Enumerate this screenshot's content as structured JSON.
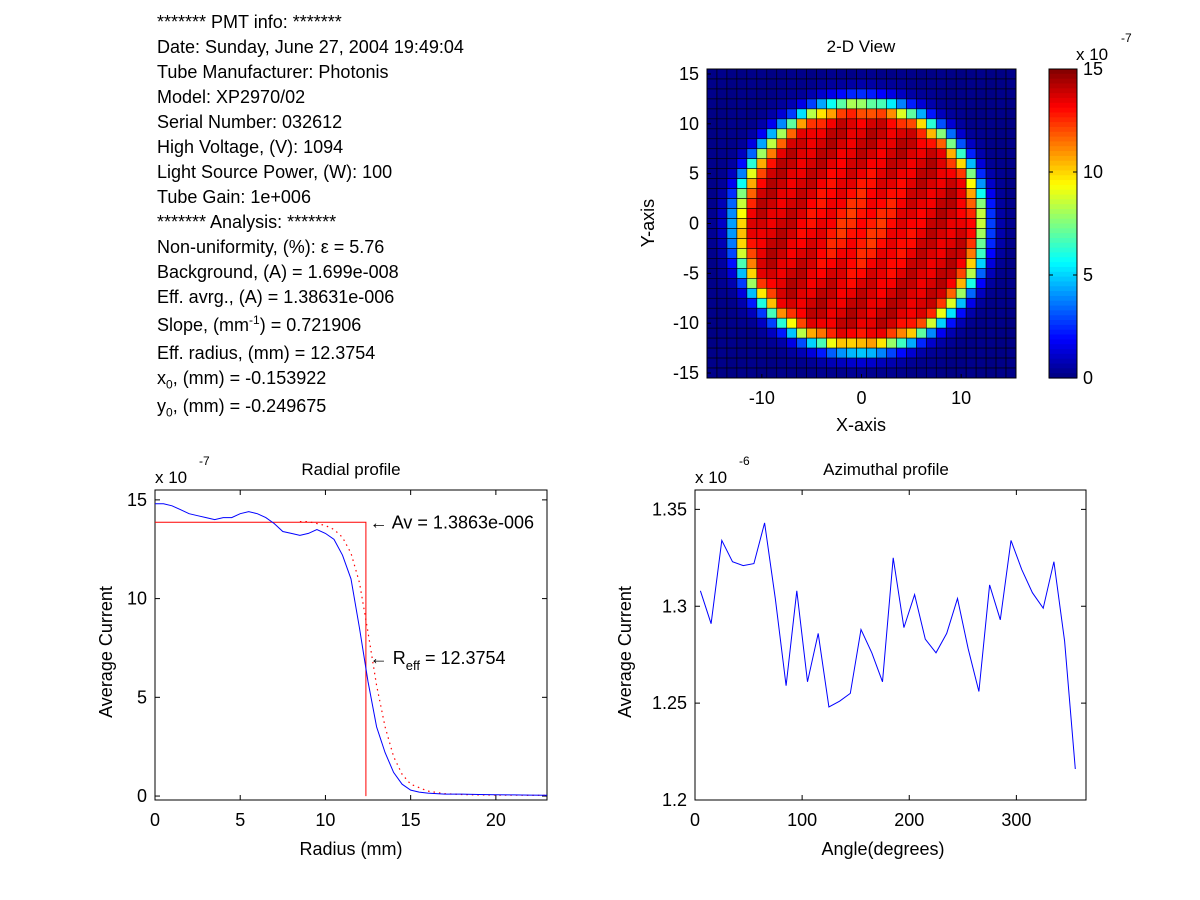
{
  "info": {
    "header": "******* PMT info: *******",
    "date": "Date: Sunday, June 27, 2004 19:49:04",
    "manufacturer": "Tube Manufacturer: Photonis",
    "model": "Model: XP2970/02",
    "serial": "Serial Number: 032612",
    "voltage": "High Voltage, (V): 1094",
    "light": "Light Source Power, (W): 100",
    "gain": "Tube Gain: 1e+006",
    "analysis_header": "******* Analysis: *******",
    "nonuniformity_label": "Non-uniformity, (%):",
    "nonuniformity_symbol": "ε",
    "nonuniformity_value": " = 5.76",
    "background": "Background, (A) = 1.699e-008",
    "eff_avg": "Eff. avrg., (A) = 1.38631e-006",
    "slope_pre": "Slope, (mm",
    "slope_sup": "-1",
    "slope_post": ") = 0.721906",
    "eff_radius": "Eff. radius, (mm) = 12.3754",
    "x0_base": "x",
    "x0_sub": "0",
    "x0_rest": ", (mm) = -0.153922",
    "y0_base": "y",
    "y0_sub": "0",
    "y0_rest": ", (mm) = -0.249675"
  },
  "colors": {
    "line_blue": "#0000ff",
    "line_red": "#ff0000"
  },
  "chart_data": [
    {
      "type": "heatmap",
      "title": "2-D View",
      "xlabel": "X-axis",
      "ylabel": "Y-axis",
      "xlim": [
        -15.5,
        15.5
      ],
      "ylim": [
        -15.5,
        15.5
      ],
      "xticks": [
        -10,
        0,
        10
      ],
      "yticks": [
        15,
        10,
        5,
        0,
        -5,
        -10,
        -15
      ],
      "grid_cells": 31,
      "disk_center": [
        -0.153922,
        -0.249675
      ],
      "disk_radius": 12.3754,
      "colorbar": {
        "range": [
          0,
          15
        ],
        "ticks": [
          15,
          10,
          5,
          0
        ],
        "exponent_base": "x 10",
        "exponent": "-7"
      },
      "colormap": "jet"
    },
    {
      "type": "line",
      "title": "Radial profile",
      "xlabel": "Radius (mm)",
      "ylabel": "Average Current",
      "exponent_base": "x 10",
      "exponent": "-7",
      "xlim": [
        0,
        23
      ],
      "ylim": [
        -0.2,
        15.5
      ],
      "xticks": [
        0,
        5,
        10,
        15,
        20
      ],
      "yticks": [
        15,
        10,
        5,
        0
      ],
      "series": [
        {
          "style": "solid-blue",
          "x": [
            0,
            0.5,
            1,
            1.5,
            2,
            2.5,
            3,
            3.5,
            4,
            4.5,
            5,
            5.5,
            6,
            6.5,
            7,
            7.5,
            8,
            8.5,
            9,
            9.5,
            10,
            10.5,
            11,
            11.5,
            12,
            12.5,
            13,
            13.5,
            14,
            14.5,
            15,
            15.5,
            16,
            17,
            18,
            19,
            20,
            21,
            22,
            23
          ],
          "values": [
            14.8,
            14.8,
            14.7,
            14.5,
            14.3,
            14.2,
            14.1,
            14.0,
            14.1,
            14.1,
            14.3,
            14.4,
            14.3,
            14.1,
            13.8,
            13.4,
            13.3,
            13.2,
            13.3,
            13.5,
            13.3,
            13.0,
            12.2,
            11.0,
            8.5,
            5.8,
            3.5,
            2.2,
            1.2,
            0.6,
            0.3,
            0.2,
            0.15,
            0.1,
            0.1,
            0.08,
            0.07,
            0.06,
            0.05,
            0.04
          ]
        },
        {
          "style": "dotted-red",
          "x": [
            8.5,
            9,
            9.5,
            10,
            10.5,
            11,
            11.5,
            12,
            12.5,
            13,
            13.5,
            14,
            14.5,
            15,
            16,
            17,
            18,
            19,
            20,
            21,
            22,
            23
          ],
          "values": [
            13.9,
            13.9,
            13.8,
            13.7,
            13.5,
            13.1,
            12.3,
            10.8,
            8.3,
            5.6,
            3.5,
            2.0,
            1.1,
            0.6,
            0.25,
            0.12,
            0.08,
            0.06,
            0.05,
            0.05,
            0.04,
            0.04
          ]
        },
        {
          "style": "solid-red-step",
          "x": [
            0,
            12.3754,
            12.3754
          ],
          "values": [
            13.863,
            13.863,
            0
          ]
        }
      ],
      "annotations": [
        {
          "text": "← Av = 1.3863e-006",
          "x": 12.6,
          "y": 13.86
        },
        {
          "text_pre": "← R",
          "text_sub": "eff",
          "text_post": " = 12.3754",
          "x": 12.6,
          "y": 7.0
        }
      ]
    },
    {
      "type": "line",
      "title": "Azimuthal profile",
      "xlabel": "Angle(degrees)",
      "ylabel": "Average Current",
      "exponent_base": "x 10",
      "exponent": "-6",
      "xlim": [
        0,
        365
      ],
      "ylim": [
        1.2,
        1.36
      ],
      "xticks": [
        0,
        100,
        200,
        300
      ],
      "yticks": [
        1.35,
        1.3,
        1.25,
        1.2
      ],
      "series": [
        {
          "style": "solid-blue",
          "x": [
            5,
            15,
            25,
            35,
            45,
            55,
            65,
            75,
            85,
            95,
            105,
            115,
            125,
            135,
            145,
            155,
            165,
            175,
            185,
            195,
            205,
            215,
            225,
            235,
            245,
            255,
            265,
            275,
            285,
            295,
            305,
            315,
            325,
            335,
            345,
            355
          ],
          "values": [
            1.308,
            1.291,
            1.334,
            1.323,
            1.321,
            1.322,
            1.343,
            1.304,
            1.259,
            1.308,
            1.261,
            1.286,
            1.248,
            1.251,
            1.255,
            1.288,
            1.276,
            1.261,
            1.325,
            1.289,
            1.306,
            1.283,
            1.276,
            1.286,
            1.304,
            1.278,
            1.256,
            1.311,
            1.293,
            1.334,
            1.319,
            1.307,
            1.299,
            1.323,
            1.282,
            1.216
          ]
        }
      ]
    }
  ]
}
